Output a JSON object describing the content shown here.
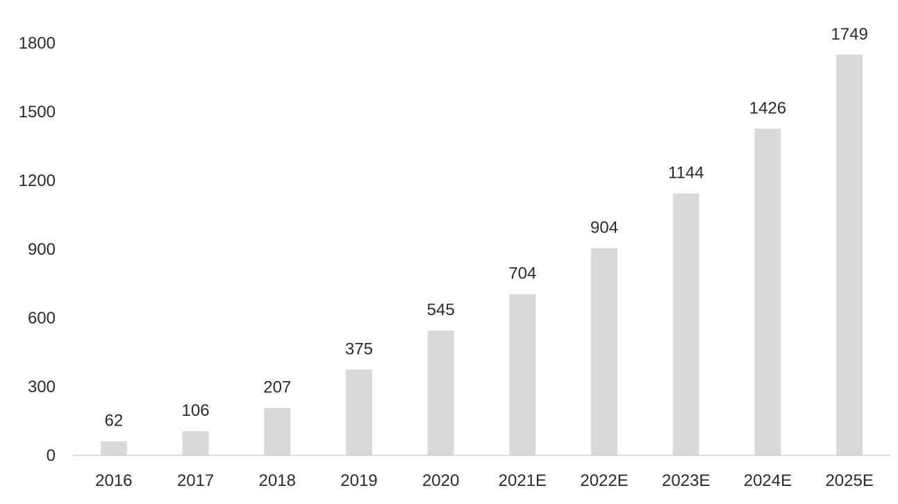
{
  "chart_data": {
    "type": "bar",
    "categories": [
      "2016",
      "2017",
      "2018",
      "2019",
      "2020",
      "2021E",
      "2022E",
      "2023E",
      "2024E",
      "2025E"
    ],
    "values": [
      62,
      106,
      207,
      375,
      545,
      704,
      904,
      1144,
      1426,
      1749
    ],
    "data_labels": [
      "62",
      "106",
      "207",
      "375",
      "545",
      "704",
      "904",
      "1144",
      "1426",
      "1749"
    ],
    "yticks": [
      "0",
      "300",
      "600",
      "900",
      "1200",
      "1500",
      "1800"
    ],
    "ytick_values": [
      0,
      300,
      600,
      900,
      1200,
      1500,
      1800
    ],
    "ylim": [
      0,
      1800
    ],
    "grid": false,
    "bar_color": "#d9d9d9"
  }
}
